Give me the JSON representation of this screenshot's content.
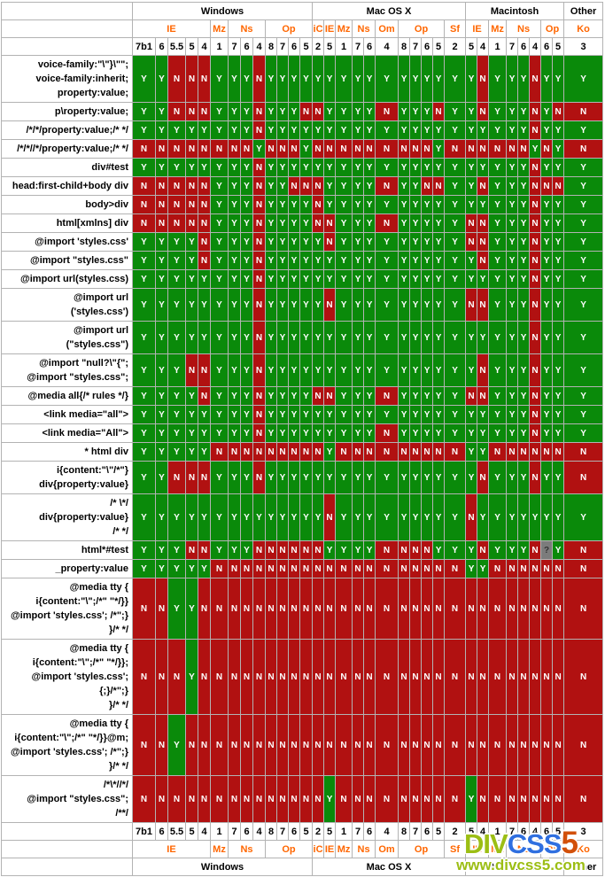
{
  "colors": {
    "yes": "#0A8A0A",
    "no": "#B11111",
    "unknown_bg": "#7C7C7C",
    "unknown_fg": "#333333",
    "browser_label": "#FF6600",
    "grid": "#B3B3B3"
  },
  "chart_data": {
    "type": "table",
    "platform_groups": [
      {
        "label": "Windows",
        "span": 13
      },
      {
        "label": "Mac OS X",
        "span": 11
      },
      {
        "label": "Macintosh",
        "span": 8
      },
      {
        "label": "Other",
        "span": 1
      }
    ],
    "browser_groups": [
      {
        "label": "IE",
        "span": 5
      },
      {
        "label": "Mz",
        "span": 1
      },
      {
        "label": "Ns",
        "span": 3
      },
      {
        "label": "Op",
        "span": 4
      },
      {
        "label": "iC",
        "span": 1
      },
      {
        "label": "IE",
        "span": 1
      },
      {
        "label": "Mz",
        "span": 1
      },
      {
        "label": "Ns",
        "span": 2
      },
      {
        "label": "Om",
        "span": 1
      },
      {
        "label": "Op",
        "span": 4
      },
      {
        "label": "Sf",
        "span": 1
      },
      {
        "label": "IE",
        "span": 2
      },
      {
        "label": "Mz",
        "span": 1
      },
      {
        "label": "Ns",
        "span": 3
      },
      {
        "label": "Op",
        "span": 2
      },
      {
        "label": "Ko",
        "span": 1
      }
    ],
    "versions": [
      "7b1",
      "6",
      "5.5",
      "5",
      "4",
      "1",
      "7",
      "6",
      "4",
      "8",
      "7",
      "6",
      "5",
      "2",
      "5",
      "1",
      "7",
      "6",
      "4",
      "8",
      "7",
      "6",
      "5",
      "2",
      "5",
      "4",
      "1",
      "7",
      "6",
      "4",
      "6",
      "5",
      "3"
    ],
    "cell_symbols": {
      "Y": "Y",
      "N": "N",
      "?": "?"
    },
    "rows": [
      {
        "label_lines": [
          "voice-family:\"\\\"}\\\"\";",
          "voice-family:inherit;",
          "property:value;"
        ],
        "values": "YYNNNYYYNYYYY YYYYYYYYYYY YNYYYNYY Y"
      },
      {
        "label_lines": [
          "p\\roperty:value;"
        ],
        "values": "YYNNNYYYNYYYN NYYYYNYYYNY YNYYYNYN N"
      },
      {
        "label_lines": [
          "/*/*/property:value;/* */"
        ],
        "values": "YYYYYYYYNYYYY YYYYYYYYYYY YYYYYNYY Y"
      },
      {
        "label_lines": [
          "/*/*//*/property:value;/* */"
        ],
        "values": "NNNNNNNNYNNNY NNNNNNNNNYN NNNNNYNY N"
      },
      {
        "label_lines": [
          "div#test"
        ],
        "values": "YYYYYYYYNYYYY YYYYYYYYYYY YYYYYNYY Y"
      },
      {
        "label_lines": [
          "head:first-child+body div"
        ],
        "values": "NNNNNYYYNYYNN NYYYYNYYNNY YNYYYNNN Y"
      },
      {
        "label_lines": [
          "body>div"
        ],
        "values": "NNNNNYYYNYYYY NYYYYYYYYYY YYYYYNYY Y"
      },
      {
        "label_lines": [
          "html[xmlns] div"
        ],
        "values": "NNNNNYYYNYYYY NNYYYNYYYYY NNYYYNYY Y"
      },
      {
        "label_lines": [
          "@import 'styles.css'"
        ],
        "values": "YYYYNYYYNYYYY YNYYYYYYYYY NNYYYNYY Y"
      },
      {
        "label_lines": [
          "@import \"styles.css\""
        ],
        "values": "YYYYNYYYNYYYY YYYYYYYYYYY YNYYYNYY Y"
      },
      {
        "label_lines": [
          "@import url(styles.css)"
        ],
        "values": "YYYYYYYYNYYYY YYYYYYYYYYY YYYYYNYY Y"
      },
      {
        "label_lines": [
          "@import url",
          "('styles.css')"
        ],
        "values": "YYYYYYYYNYYYY YNYYYYYYYYY NNYYYNYY Y"
      },
      {
        "label_lines": [
          "@import url",
          "(\"styles.css\")"
        ],
        "values": "YYYYYYYYNYYYY YYYYYYYYYYY YYYYYNYY Y"
      },
      {
        "label_lines": [
          "@import \"null?\\\"{\";",
          "@import \"styles.css\";"
        ],
        "values": "YYYNNYYYNYYYY YYYYYYYYYYY YNYYYNYY Y"
      },
      {
        "label_lines": [
          "@media all{/* rules */}"
        ],
        "values": "YYYYNYYYNYYYY NNYYYNYYYYY NNYYYNYY Y"
      },
      {
        "label_lines": [
          "<link media=\"all\">"
        ],
        "values": "YYYYYYYYNYYYY YYYYYYYYYYY YYYYYNYY Y"
      },
      {
        "label_lines": [
          "<link media=\"All\">"
        ],
        "values": "YYYYYYYYNYYYY YYYYYNYYYYY YYYYYNYY Y"
      },
      {
        "label_lines": [
          "* html div"
        ],
        "values": "YYYYYNNNNNNNN NYNNNNNNNNN YYNNNNNN N"
      },
      {
        "label_lines": [
          "i{content:\"\\\"/*\"}",
          "div{property:value}"
        ],
        "values": "YYNNNYYYNYYYY YYYYYYYYYYY YNYYYNYY N"
      },
      {
        "label_lines": [
          "/* \\*/",
          "div{property:value}",
          "/* */"
        ],
        "values": "YYYYYYYYYYYYY YNYYYYYYYYY NYYYYYYY Y"
      },
      {
        "label_lines": [
          "html*#test"
        ],
        "values": "YYYNNYYYNNNNN NYYYYNNNNYY YNYYYN?Y N"
      },
      {
        "label_lines": [
          "_property:value"
        ],
        "values": "YYYYYNNNNNNNN NNNNNNNNNNN YYNNNNNN N"
      },
      {
        "label_lines": [
          "@media tty {",
          "i{content:\"\\\";/*\" \"*/}}",
          "@import 'styles.css'; /*\";}",
          "}/* */"
        ],
        "values": "NNYYNNNNNNNNN NNNNNNNNNNN NNNNNNNN N"
      },
      {
        "label_lines": [
          "@media tty {",
          "i{content:\"\\\";/*\" \"*/}};",
          "@import 'styles.css';",
          "{;}/*\";}",
          "}/* */"
        ],
        "values": "NNNYNNNNNNNNN NNNNNNNNNNN NNNNNNNN N"
      },
      {
        "label_lines": [
          "@media tty {",
          "i{content:\"\\\";/*\" \"*/}}@m;",
          "@import 'styles.css'; /*\";}",
          "}/* */"
        ],
        "values": "NNYNNNNNNNNNN NNNNNNNNNNN NNNNNNNN N"
      },
      {
        "label_lines": [
          "/*\\*//*/",
          "@import \"styles.css\";",
          "/**/"
        ],
        "values": "NNNNNNNNNNNNN NYNNNNNNNNN YNNNNNNN N"
      }
    ]
  },
  "logo": {
    "part1": "DIV",
    "part2": "CSS",
    "part3": "5",
    "url": "www.divcss5.com",
    "part1_color": "#9CBE14",
    "part2_color": "#2F6FE0",
    "part3_color": "#D2500A",
    "url_color": "#9CBE14"
  }
}
